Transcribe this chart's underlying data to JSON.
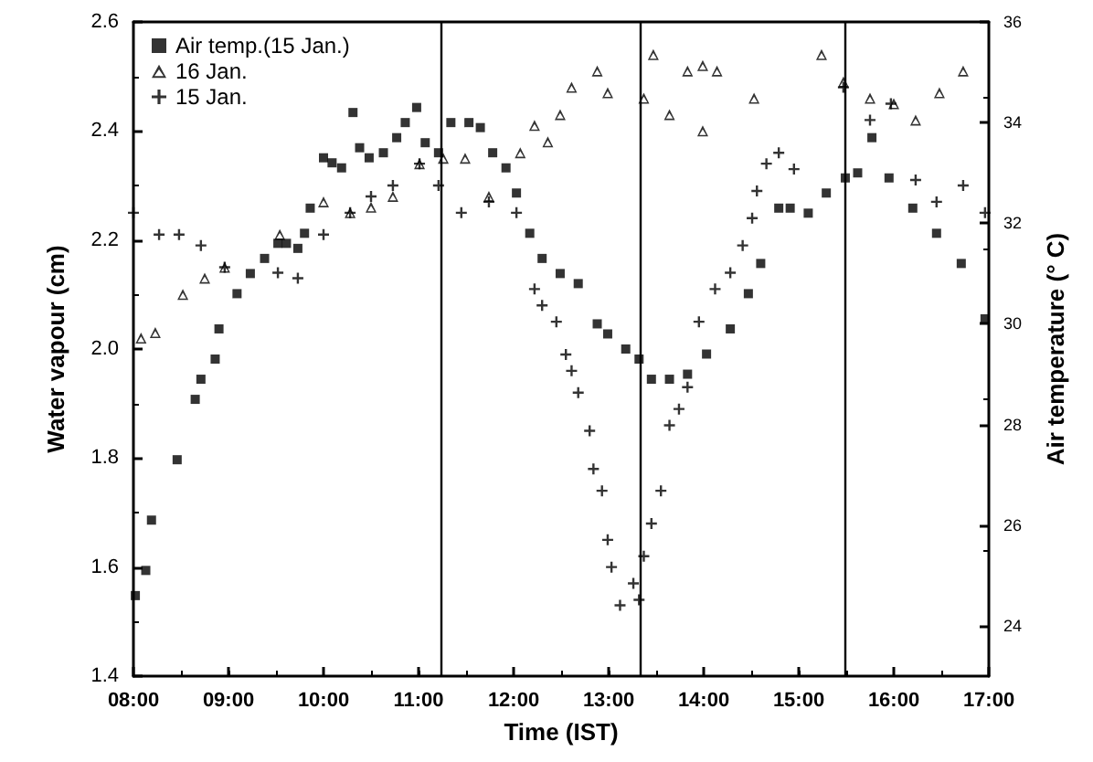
{
  "chart_data": {
    "type": "scatter",
    "xlabel": "Time (IST)",
    "ylabel": "Water vapour (cm)",
    "y2label": "Air temperature (° C)",
    "xlim": [
      8,
      17
    ],
    "xticks": [
      {
        "value": 8,
        "label": "08:00"
      },
      {
        "value": 9,
        "label": "09:00"
      },
      {
        "value": 10,
        "label": "10:00"
      },
      {
        "value": 11,
        "label": "11:00"
      },
      {
        "value": 12,
        "label": "12:00"
      },
      {
        "value": 13,
        "label": "13:00"
      },
      {
        "value": 14,
        "label": "14:00"
      },
      {
        "value": 15,
        "label": "15:00"
      },
      {
        "value": 16,
        "label": "16:00"
      },
      {
        "value": 17,
        "label": "17:00"
      }
    ],
    "ylim": [
      1.4,
      2.6
    ],
    "yticks": [
      1.4,
      1.6,
      1.8,
      {
        "value": 2,
        "label": "2.0"
      },
      2.2,
      2.4,
      2.6
    ],
    "y2lim": [
      23,
      36
    ],
    "y2ticks": [
      24,
      26,
      28,
      30,
      32,
      34,
      36
    ],
    "grid": false,
    "legend": "top left",
    "ref_lines": [
      {
        "axis": "x",
        "value": 11.23,
        "color": "#000000"
      },
      {
        "axis": "x",
        "value": 13.34,
        "color": "#000000"
      },
      {
        "axis": "x",
        "value": 15.48,
        "color": "#000000"
      }
    ],
    "series": [
      {
        "name": "Air temp.(15 Jan.)",
        "axis": "y2",
        "marker": "square",
        "color": "#000000",
        "x": [
          8.02,
          8.13,
          8.19,
          8.46,
          8.65,
          8.71,
          8.86,
          8.9,
          9.09,
          9.23,
          9.38,
          9.52,
          9.61,
          9.73,
          9.8,
          9.86,
          10.0,
          10.09,
          10.19,
          10.31,
          10.38,
          10.48,
          10.63,
          10.77,
          10.86,
          10.98,
          11.07,
          11.21,
          11.34,
          11.53,
          11.65,
          11.78,
          11.92,
          12.03,
          12.17,
          12.3,
          12.49,
          12.68,
          12.88,
          12.99,
          13.18,
          13.32,
          13.45,
          13.64,
          13.83,
          14.03,
          14.28,
          14.47,
          14.6,
          14.79,
          14.91,
          15.1,
          15.29,
          15.49,
          15.62,
          15.77,
          15.95,
          16.2,
          16.45,
          16.71,
          16.96
        ],
        "values": [
          24.6,
          25.1,
          26.1,
          27.3,
          28.5,
          28.9,
          29.3,
          29.9,
          30.6,
          31.0,
          31.3,
          31.6,
          31.6,
          31.5,
          31.8,
          32.3,
          33.3,
          33.2,
          33.1,
          34.2,
          33.5,
          33.3,
          33.4,
          33.7,
          34.0,
          34.3,
          33.6,
          33.4,
          34.0,
          34.0,
          33.9,
          33.4,
          33.1,
          32.6,
          31.8,
          31.3,
          31.0,
          30.8,
          30.0,
          29.8,
          29.5,
          29.3,
          28.9,
          28.9,
          29.0,
          29.4,
          29.9,
          30.6,
          31.2,
          32.3,
          32.3,
          32.2,
          32.6,
          32.9,
          33.0,
          33.7,
          32.9,
          32.3,
          31.8,
          31.2,
          30.1
        ]
      },
      {
        "name": "16 Jan.",
        "marker": "triangle",
        "color": "#000000",
        "x": [
          8.08,
          8.23,
          8.52,
          8.75,
          8.96,
          9.54,
          10.0,
          10.28,
          10.5,
          10.73,
          11.01,
          11.26,
          11.49,
          11.74,
          12.07,
          12.22,
          12.36,
          12.49,
          12.61,
          12.88,
          12.99,
          13.37,
          13.47,
          13.64,
          13.83,
          13.99,
          13.99,
          14.14,
          14.53,
          15.24,
          15.47,
          15.75,
          16.0,
          16.23,
          16.48,
          16.73
        ],
        "values": [
          2.02,
          2.03,
          2.1,
          2.13,
          2.15,
          2.21,
          2.27,
          2.25,
          2.26,
          2.28,
          2.34,
          2.35,
          2.35,
          2.28,
          2.36,
          2.41,
          2.38,
          2.43,
          2.48,
          2.51,
          2.47,
          2.46,
          2.54,
          2.43,
          2.51,
          2.52,
          2.4,
          2.51,
          2.46,
          2.54,
          2.49,
          2.46,
          2.45,
          2.42,
          2.47,
          2.51
        ]
      },
      {
        "name": "15 Jan.",
        "marker": "cross",
        "color": "#000000",
        "x": [
          8.0,
          8.27,
          8.48,
          8.71,
          8.96,
          9.52,
          9.73,
          10.0,
          10.28,
          10.5,
          10.73,
          11.01,
          11.21,
          11.45,
          11.74,
          12.03,
          12.22,
          12.3,
          12.45,
          12.55,
          12.61,
          12.68,
          12.8,
          12.84,
          12.93,
          12.99,
          13.03,
          13.12,
          13.26,
          13.32,
          13.37,
          13.45,
          13.55,
          13.64,
          13.74,
          13.83,
          13.95,
          14.12,
          14.28,
          14.41,
          14.51,
          14.56,
          14.66,
          14.79,
          14.95,
          15.47,
          15.75,
          15.97,
          16.23,
          16.45,
          16.73,
          16.96
        ],
        "values": [
          2.25,
          2.21,
          2.21,
          2.19,
          2.15,
          2.14,
          2.13,
          2.21,
          2.25,
          2.28,
          2.3,
          2.34,
          2.3,
          2.25,
          2.27,
          2.25,
          2.11,
          2.08,
          2.05,
          1.99,
          1.96,
          1.92,
          1.85,
          1.78,
          1.74,
          1.65,
          1.6,
          1.53,
          1.57,
          1.54,
          1.62,
          1.68,
          1.74,
          1.86,
          1.89,
          1.93,
          2.05,
          2.11,
          2.14,
          2.19,
          2.24,
          2.29,
          2.34,
          2.36,
          2.33,
          2.48,
          2.42,
          2.45,
          2.31,
          2.27,
          2.3,
          2.25
        ]
      }
    ]
  }
}
